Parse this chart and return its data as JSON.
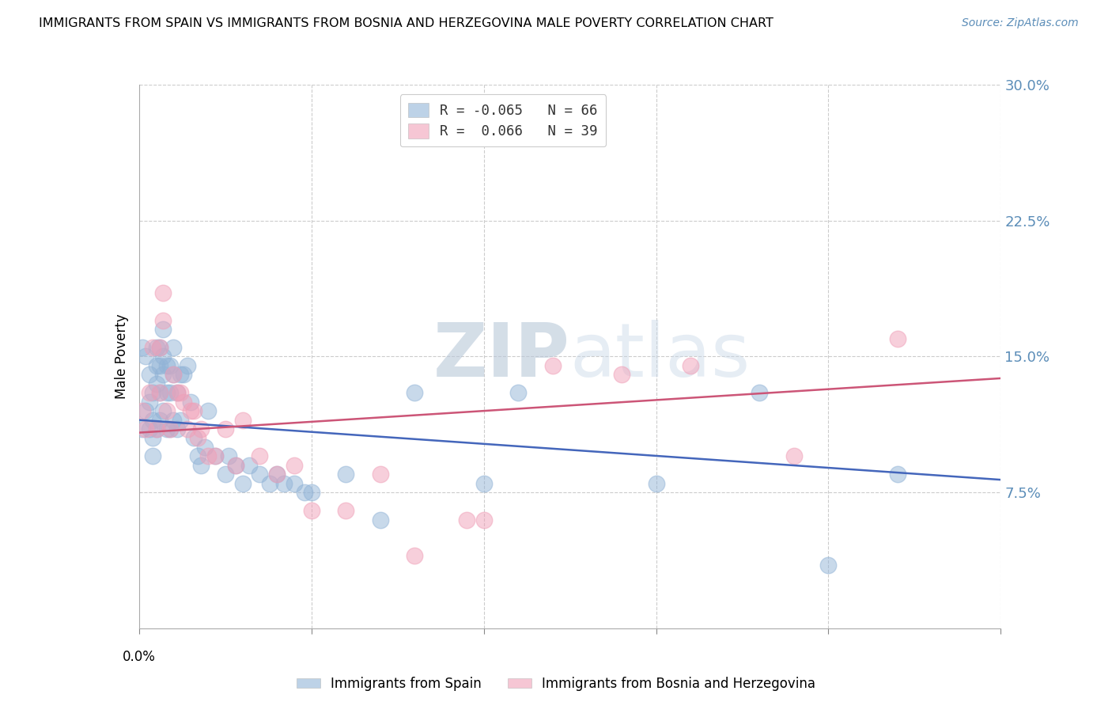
{
  "title": "IMMIGRANTS FROM SPAIN VS IMMIGRANTS FROM BOSNIA AND HERZEGOVINA MALE POVERTY CORRELATION CHART",
  "source": "Source: ZipAtlas.com",
  "ylabel": "Male Poverty",
  "yticks": [
    0.075,
    0.15,
    0.225,
    0.3
  ],
  "ytick_labels": [
    "7.5%",
    "15.0%",
    "22.5%",
    "30.0%"
  ],
  "xticks": [
    0.0,
    0.05,
    0.1,
    0.15,
    0.2,
    0.25
  ],
  "xlim": [
    0.0,
    0.25
  ],
  "ylim": [
    0.0,
    0.3
  ],
  "legend_entry1": "R = -0.065   N = 66",
  "legend_entry2": "R =  0.066   N = 39",
  "series1_label": "Immigrants from Spain",
  "series2_label": "Immigrants from Bosnia and Herzegovina",
  "series1_color": "#92B4D7",
  "series2_color": "#F0A0B8",
  "series1_line_color": "#4466BB",
  "series2_line_color": "#CC5577",
  "watermark_zip": "ZIP",
  "watermark_atlas": "atlas",
  "series1_x": [
    0.001,
    0.001,
    0.002,
    0.002,
    0.003,
    0.003,
    0.003,
    0.004,
    0.004,
    0.004,
    0.004,
    0.005,
    0.005,
    0.005,
    0.005,
    0.006,
    0.006,
    0.006,
    0.006,
    0.007,
    0.007,
    0.007,
    0.007,
    0.008,
    0.008,
    0.008,
    0.009,
    0.009,
    0.009,
    0.01,
    0.01,
    0.01,
    0.011,
    0.011,
    0.012,
    0.012,
    0.013,
    0.014,
    0.015,
    0.016,
    0.017,
    0.018,
    0.019,
    0.02,
    0.022,
    0.025,
    0.026,
    0.028,
    0.03,
    0.032,
    0.035,
    0.038,
    0.04,
    0.042,
    0.045,
    0.048,
    0.05,
    0.06,
    0.07,
    0.08,
    0.1,
    0.11,
    0.15,
    0.18,
    0.2,
    0.22
  ],
  "series1_y": [
    0.155,
    0.11,
    0.15,
    0.12,
    0.14,
    0.125,
    0.11,
    0.13,
    0.115,
    0.105,
    0.095,
    0.155,
    0.145,
    0.135,
    0.11,
    0.155,
    0.145,
    0.13,
    0.115,
    0.165,
    0.15,
    0.14,
    0.12,
    0.145,
    0.13,
    0.11,
    0.145,
    0.13,
    0.11,
    0.155,
    0.14,
    0.115,
    0.13,
    0.11,
    0.14,
    0.115,
    0.14,
    0.145,
    0.125,
    0.105,
    0.095,
    0.09,
    0.1,
    0.12,
    0.095,
    0.085,
    0.095,
    0.09,
    0.08,
    0.09,
    0.085,
    0.08,
    0.085,
    0.08,
    0.08,
    0.075,
    0.075,
    0.085,
    0.06,
    0.13,
    0.08,
    0.13,
    0.08,
    0.13,
    0.035,
    0.085
  ],
  "series2_x": [
    0.001,
    0.002,
    0.003,
    0.004,
    0.005,
    0.006,
    0.006,
    0.007,
    0.007,
    0.008,
    0.009,
    0.01,
    0.011,
    0.012,
    0.013,
    0.014,
    0.015,
    0.016,
    0.017,
    0.018,
    0.02,
    0.022,
    0.025,
    0.028,
    0.03,
    0.035,
    0.04,
    0.045,
    0.05,
    0.06,
    0.07,
    0.08,
    0.095,
    0.1,
    0.12,
    0.14,
    0.16,
    0.19,
    0.22
  ],
  "series2_y": [
    0.12,
    0.11,
    0.13,
    0.155,
    0.11,
    0.155,
    0.13,
    0.185,
    0.17,
    0.12,
    0.11,
    0.14,
    0.13,
    0.13,
    0.125,
    0.11,
    0.12,
    0.12,
    0.105,
    0.11,
    0.095,
    0.095,
    0.11,
    0.09,
    0.115,
    0.095,
    0.085,
    0.09,
    0.065,
    0.065,
    0.085,
    0.04,
    0.06,
    0.06,
    0.145,
    0.14,
    0.145,
    0.095,
    0.16
  ],
  "trend1_x0": 0.0,
  "trend1_y0": 0.115,
  "trend1_x1": 0.25,
  "trend1_y1": 0.082,
  "trend2_x0": 0.0,
  "trend2_y0": 0.108,
  "trend2_x1": 0.25,
  "trend2_y1": 0.138
}
